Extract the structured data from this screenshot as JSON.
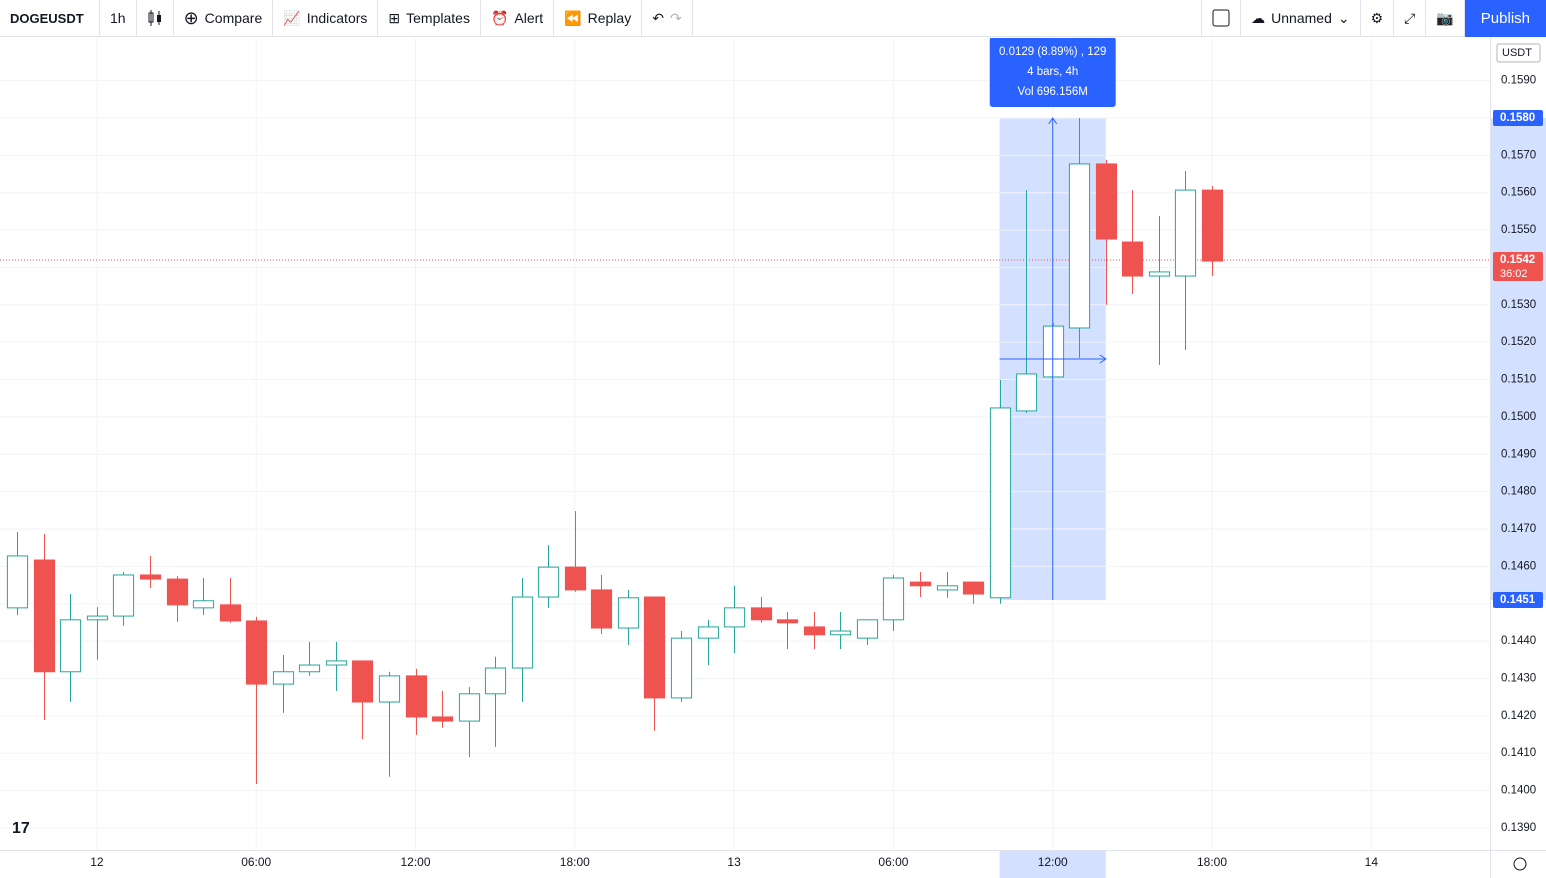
{
  "toolbar": {
    "symbol": "DOGEUSDT",
    "interval": "1h",
    "compare": "Compare",
    "indicators": "Indicators",
    "templates": "Templates",
    "alert": "Alert",
    "replay": "Replay",
    "layout": "Unnamed",
    "publish": "Publish"
  },
  "chart_data": {
    "type": "candlestick",
    "currency": "USDT",
    "up_color": "#26a69a",
    "down_color": "#ef5350",
    "grid": true,
    "x": [
      -3,
      -2,
      -1,
      0,
      1,
      2,
      3,
      4,
      5,
      6,
      7,
      8,
      9,
      10,
      11,
      12,
      13,
      14,
      15,
      16,
      17,
      18,
      19,
      20,
      21,
      22,
      23,
      24,
      25,
      26,
      27,
      28,
      29,
      30,
      31,
      32,
      33,
      34,
      35,
      36,
      37,
      38,
      39,
      40,
      41,
      42
    ],
    "open": [
      0.14489,
      0.14617,
      0.14318,
      0.14457,
      0.14467,
      0.14577,
      0.14566,
      0.14489,
      0.14497,
      0.14454,
      0.14285,
      0.14318,
      0.14336,
      0.14347,
      0.14237,
      0.14307,
      0.14197,
      0.14186,
      0.14259,
      0.14328,
      0.14518,
      0.14598,
      0.14537,
      0.14435,
      0.14518,
      0.14248,
      0.14408,
      0.14438,
      0.14489,
      0.14457,
      0.14438,
      0.14417,
      0.14408,
      0.14457,
      0.14558,
      0.14537,
      0.14558,
      0.14516,
      0.15016,
      0.15107,
      0.15238,
      0.15677,
      0.15468,
      0.15377,
      0.15377,
      0.15607
    ],
    "high": [
      0.14692,
      0.14687,
      0.14526,
      0.14491,
      0.14585,
      0.14628,
      0.14574,
      0.14569,
      0.14569,
      0.14465,
      0.14363,
      0.14398,
      0.14398,
      0.14347,
      0.14318,
      0.14326,
      0.14267,
      0.14277,
      0.14358,
      0.14569,
      0.14657,
      0.14748,
      0.14577,
      0.14537,
      0.14518,
      0.14427,
      0.14457,
      0.14548,
      0.14518,
      0.14478,
      0.14478,
      0.14478,
      0.14457,
      0.14577,
      0.14585,
      0.14585,
      0.14558,
      0.15099,
      0.15607,
      0.1525,
      0.158,
      0.15688,
      0.15607,
      0.15538,
      0.15658,
      0.15618
    ],
    "low": [
      0.1447,
      0.14189,
      0.14237,
      0.1435,
      0.14441,
      0.14542,
      0.14451,
      0.1447,
      0.14449,
      0.14018,
      0.14208,
      0.14307,
      0.14267,
      0.14138,
      0.14037,
      0.14149,
      0.14168,
      0.1409,
      0.14117,
      0.14237,
      0.14489,
      0.14532,
      0.14419,
      0.1439,
      0.1416,
      0.14237,
      0.14336,
      0.14368,
      0.14449,
      0.14379,
      0.14379,
      0.14379,
      0.1439,
      0.14427,
      0.14518,
      0.14516,
      0.145,
      0.145,
      0.1501,
      0.15107,
      0.15158,
      0.153,
      0.15329,
      0.15139,
      0.15179,
      0.15377
    ],
    "close": [
      0.14628,
      0.14318,
      0.14457,
      0.14467,
      0.14577,
      0.14566,
      0.14497,
      0.14508,
      0.14454,
      0.14285,
      0.14318,
      0.14336,
      0.14347,
      0.14237,
      0.14307,
      0.14197,
      0.14186,
      0.14259,
      0.14328,
      0.14518,
      0.14598,
      0.14537,
      0.14435,
      0.14516,
      0.14248,
      0.14408,
      0.14438,
      0.14489,
      0.14457,
      0.14449,
      0.14417,
      0.14427,
      0.14457,
      0.14569,
      0.14548,
      0.14548,
      0.14526,
      0.15024,
      0.15115,
      0.15243,
      0.15677,
      0.15476,
      0.15377,
      0.15388,
      0.15607,
      0.15417
    ],
    "xlim": [
      -3.65,
      52.47
    ],
    "xticks": [
      {
        "value": 0,
        "label": "12"
      },
      {
        "value": 6,
        "label": "06:00"
      },
      {
        "value": 12,
        "label": "12:00"
      },
      {
        "value": 18,
        "label": "18:00"
      },
      {
        "value": 24,
        "label": "13"
      },
      {
        "value": 30,
        "label": "06:00"
      },
      {
        "value": 36,
        "label": "12:00"
      },
      {
        "value": 42,
        "label": "18:00"
      },
      {
        "value": 48,
        "label": "14"
      }
    ],
    "ylim": [
      0.13841,
      0.16014
    ],
    "yticks": [
      {
        "value": 0.139,
        "label": "0.1390"
      },
      {
        "value": 0.14,
        "label": "0.1400"
      },
      {
        "value": 0.141,
        "label": "0.1410"
      },
      {
        "value": 0.142,
        "label": "0.1420"
      },
      {
        "value": 0.143,
        "label": "0.1430"
      },
      {
        "value": 0.144,
        "label": "0.1440"
      },
      {
        "value": 0.145,
        "label": "0.1450"
      },
      {
        "value": 0.146,
        "label": "0.1460"
      },
      {
        "value": 0.147,
        "label": "0.1470"
      },
      {
        "value": 0.148,
        "label": "0.1480"
      },
      {
        "value": 0.149,
        "label": "0.1490"
      },
      {
        "value": 0.15,
        "label": "0.1500"
      },
      {
        "value": 0.151,
        "label": "0.1510"
      },
      {
        "value": 0.152,
        "label": "0.1520"
      },
      {
        "value": 0.153,
        "label": "0.1530"
      },
      {
        "value": 0.154,
        "label": "0.1540"
      },
      {
        "value": 0.155,
        "label": "0.1550"
      },
      {
        "value": 0.156,
        "label": "0.1560"
      },
      {
        "value": 0.157,
        "label": "0.1570"
      },
      {
        "value": 0.158,
        "label": "0.1580"
      },
      {
        "value": 0.159,
        "label": "0.1590"
      }
    ],
    "measure": {
      "x_range": [
        34,
        38
      ],
      "low": {
        "value": 0.1451,
        "label": "0.1451"
      },
      "high": {
        "value": 0.158,
        "label": "0.1580"
      },
      "text": [
        "0.0129 (8.89%) , 129",
        "4 bars, 4h",
        "Vol 696.156M"
      ]
    },
    "last_price": {
      "value": 0.1542,
      "label": "0.1542",
      "countdown": "36:02"
    }
  }
}
